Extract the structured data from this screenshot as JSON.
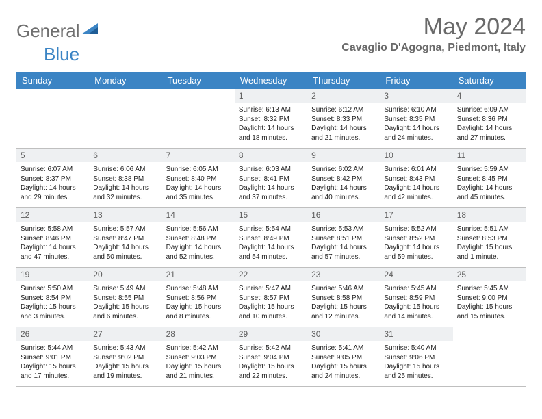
{
  "logo": {
    "general": "General",
    "blue": "Blue"
  },
  "title": "May 2024",
  "location": "Cavaglio D'Agogna, Piedmont, Italy",
  "colors": {
    "header_bg": "#3b84c4",
    "header_text": "#ffffff",
    "daynum_bg": "#eef0f2",
    "daynum_text": "#5f5f5f",
    "grid_line": "#bfbfbf",
    "title_color": "#6a6a6a"
  },
  "day_names": [
    "Sunday",
    "Monday",
    "Tuesday",
    "Wednesday",
    "Thursday",
    "Friday",
    "Saturday"
  ],
  "weeks": [
    [
      {
        "n": "",
        "sr": "",
        "ss": "",
        "dl": ""
      },
      {
        "n": "",
        "sr": "",
        "ss": "",
        "dl": ""
      },
      {
        "n": "",
        "sr": "",
        "ss": "",
        "dl": ""
      },
      {
        "n": "1",
        "sr": "Sunrise: 6:13 AM",
        "ss": "Sunset: 8:32 PM",
        "dl": "Daylight: 14 hours and 18 minutes."
      },
      {
        "n": "2",
        "sr": "Sunrise: 6:12 AM",
        "ss": "Sunset: 8:33 PM",
        "dl": "Daylight: 14 hours and 21 minutes."
      },
      {
        "n": "3",
        "sr": "Sunrise: 6:10 AM",
        "ss": "Sunset: 8:35 PM",
        "dl": "Daylight: 14 hours and 24 minutes."
      },
      {
        "n": "4",
        "sr": "Sunrise: 6:09 AM",
        "ss": "Sunset: 8:36 PM",
        "dl": "Daylight: 14 hours and 27 minutes."
      }
    ],
    [
      {
        "n": "5",
        "sr": "Sunrise: 6:07 AM",
        "ss": "Sunset: 8:37 PM",
        "dl": "Daylight: 14 hours and 29 minutes."
      },
      {
        "n": "6",
        "sr": "Sunrise: 6:06 AM",
        "ss": "Sunset: 8:38 PM",
        "dl": "Daylight: 14 hours and 32 minutes."
      },
      {
        "n": "7",
        "sr": "Sunrise: 6:05 AM",
        "ss": "Sunset: 8:40 PM",
        "dl": "Daylight: 14 hours and 35 minutes."
      },
      {
        "n": "8",
        "sr": "Sunrise: 6:03 AM",
        "ss": "Sunset: 8:41 PM",
        "dl": "Daylight: 14 hours and 37 minutes."
      },
      {
        "n": "9",
        "sr": "Sunrise: 6:02 AM",
        "ss": "Sunset: 8:42 PM",
        "dl": "Daylight: 14 hours and 40 minutes."
      },
      {
        "n": "10",
        "sr": "Sunrise: 6:01 AM",
        "ss": "Sunset: 8:43 PM",
        "dl": "Daylight: 14 hours and 42 minutes."
      },
      {
        "n": "11",
        "sr": "Sunrise: 5:59 AM",
        "ss": "Sunset: 8:45 PM",
        "dl": "Daylight: 14 hours and 45 minutes."
      }
    ],
    [
      {
        "n": "12",
        "sr": "Sunrise: 5:58 AM",
        "ss": "Sunset: 8:46 PM",
        "dl": "Daylight: 14 hours and 47 minutes."
      },
      {
        "n": "13",
        "sr": "Sunrise: 5:57 AM",
        "ss": "Sunset: 8:47 PM",
        "dl": "Daylight: 14 hours and 50 minutes."
      },
      {
        "n": "14",
        "sr": "Sunrise: 5:56 AM",
        "ss": "Sunset: 8:48 PM",
        "dl": "Daylight: 14 hours and 52 minutes."
      },
      {
        "n": "15",
        "sr": "Sunrise: 5:54 AM",
        "ss": "Sunset: 8:49 PM",
        "dl": "Daylight: 14 hours and 54 minutes."
      },
      {
        "n": "16",
        "sr": "Sunrise: 5:53 AM",
        "ss": "Sunset: 8:51 PM",
        "dl": "Daylight: 14 hours and 57 minutes."
      },
      {
        "n": "17",
        "sr": "Sunrise: 5:52 AM",
        "ss": "Sunset: 8:52 PM",
        "dl": "Daylight: 14 hours and 59 minutes."
      },
      {
        "n": "18",
        "sr": "Sunrise: 5:51 AM",
        "ss": "Sunset: 8:53 PM",
        "dl": "Daylight: 15 hours and 1 minute."
      }
    ],
    [
      {
        "n": "19",
        "sr": "Sunrise: 5:50 AM",
        "ss": "Sunset: 8:54 PM",
        "dl": "Daylight: 15 hours and 3 minutes."
      },
      {
        "n": "20",
        "sr": "Sunrise: 5:49 AM",
        "ss": "Sunset: 8:55 PM",
        "dl": "Daylight: 15 hours and 6 minutes."
      },
      {
        "n": "21",
        "sr": "Sunrise: 5:48 AM",
        "ss": "Sunset: 8:56 PM",
        "dl": "Daylight: 15 hours and 8 minutes."
      },
      {
        "n": "22",
        "sr": "Sunrise: 5:47 AM",
        "ss": "Sunset: 8:57 PM",
        "dl": "Daylight: 15 hours and 10 minutes."
      },
      {
        "n": "23",
        "sr": "Sunrise: 5:46 AM",
        "ss": "Sunset: 8:58 PM",
        "dl": "Daylight: 15 hours and 12 minutes."
      },
      {
        "n": "24",
        "sr": "Sunrise: 5:45 AM",
        "ss": "Sunset: 8:59 PM",
        "dl": "Daylight: 15 hours and 14 minutes."
      },
      {
        "n": "25",
        "sr": "Sunrise: 5:45 AM",
        "ss": "Sunset: 9:00 PM",
        "dl": "Daylight: 15 hours and 15 minutes."
      }
    ],
    [
      {
        "n": "26",
        "sr": "Sunrise: 5:44 AM",
        "ss": "Sunset: 9:01 PM",
        "dl": "Daylight: 15 hours and 17 minutes."
      },
      {
        "n": "27",
        "sr": "Sunrise: 5:43 AM",
        "ss": "Sunset: 9:02 PM",
        "dl": "Daylight: 15 hours and 19 minutes."
      },
      {
        "n": "28",
        "sr": "Sunrise: 5:42 AM",
        "ss": "Sunset: 9:03 PM",
        "dl": "Daylight: 15 hours and 21 minutes."
      },
      {
        "n": "29",
        "sr": "Sunrise: 5:42 AM",
        "ss": "Sunset: 9:04 PM",
        "dl": "Daylight: 15 hours and 22 minutes."
      },
      {
        "n": "30",
        "sr": "Sunrise: 5:41 AM",
        "ss": "Sunset: 9:05 PM",
        "dl": "Daylight: 15 hours and 24 minutes."
      },
      {
        "n": "31",
        "sr": "Sunrise: 5:40 AM",
        "ss": "Sunset: 9:06 PM",
        "dl": "Daylight: 15 hours and 25 minutes."
      },
      {
        "n": "",
        "sr": "",
        "ss": "",
        "dl": ""
      }
    ]
  ]
}
